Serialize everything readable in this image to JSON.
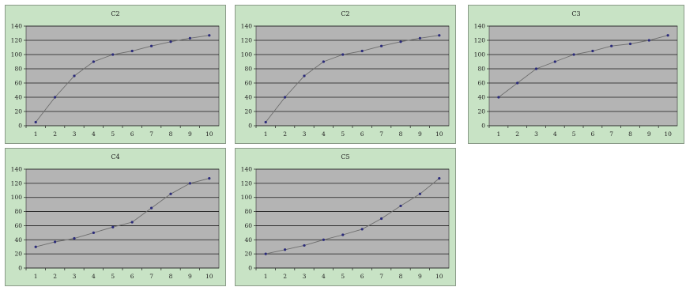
{
  "chart_data": [
    {
      "type": "line",
      "title": "C2",
      "categories": [
        "1",
        "2",
        "3",
        "4",
        "5",
        "6",
        "7",
        "8",
        "9",
        "10"
      ],
      "series": [
        {
          "values": [
            5,
            40,
            70,
            90,
            100,
            105,
            112,
            118,
            123,
            127
          ]
        }
      ],
      "y_ticks": [
        "0",
        "20",
        "40",
        "60",
        "80",
        "100",
        "120",
        "140"
      ],
      "ylim": [
        0,
        140
      ],
      "grid": true,
      "colors": {
        "panel": "#c8e3c5",
        "plot": "#b4b4b4",
        "line": "#6e6e6e",
        "marker": "#2b2b7a",
        "grid": "#1a1a1a"
      }
    },
    {
      "type": "line",
      "title": "C2",
      "categories": [
        "1",
        "2",
        "3",
        "4",
        "5",
        "6",
        "7",
        "8",
        "9",
        "10"
      ],
      "series": [
        {
          "values": [
            5,
            40,
            70,
            90,
            100,
            105,
            112,
            118,
            123,
            127
          ]
        }
      ],
      "y_ticks": [
        "0",
        "20",
        "40",
        "60",
        "80",
        "100",
        "120",
        "140"
      ],
      "ylim": [
        0,
        140
      ],
      "grid": true,
      "colors": {
        "panel": "#c8e3c5",
        "plot": "#b4b4b4",
        "line": "#6e6e6e",
        "marker": "#2b2b7a",
        "grid": "#1a1a1a"
      }
    },
    {
      "type": "line",
      "title": "C3",
      "categories": [
        "1",
        "2",
        "3",
        "4",
        "5",
        "6",
        "7",
        "8",
        "9",
        "10"
      ],
      "series": [
        {
          "values": [
            40,
            60,
            80,
            90,
            100,
            105,
            112,
            115,
            120,
            127
          ]
        }
      ],
      "y_ticks": [
        "0",
        "20",
        "40",
        "60",
        "80",
        "100",
        "120",
        "140"
      ],
      "ylim": [
        0,
        140
      ],
      "grid": true,
      "colors": {
        "panel": "#c8e3c5",
        "plot": "#b4b4b4",
        "line": "#6e6e6e",
        "marker": "#2b2b7a",
        "grid": "#1a1a1a"
      }
    },
    {
      "type": "line",
      "title": "C4",
      "categories": [
        "1",
        "2",
        "3",
        "4",
        "5",
        "6",
        "7",
        "8",
        "9",
        "10"
      ],
      "series": [
        {
          "values": [
            30,
            37,
            42,
            50,
            58,
            65,
            85,
            105,
            120,
            127
          ]
        }
      ],
      "y_ticks": [
        "0",
        "20",
        "40",
        "60",
        "80",
        "100",
        "120",
        "140"
      ],
      "ylim": [
        0,
        140
      ],
      "grid": true,
      "colors": {
        "panel": "#c8e3c5",
        "plot": "#b4b4b4",
        "line": "#6e6e6e",
        "marker": "#2b2b7a",
        "grid": "#1a1a1a"
      }
    },
    {
      "type": "line",
      "title": "C5",
      "categories": [
        "1",
        "2",
        "3",
        "4",
        "5",
        "6",
        "7",
        "8",
        "9",
        "10"
      ],
      "series": [
        {
          "values": [
            20,
            26,
            32,
            40,
            47,
            55,
            70,
            88,
            105,
            127
          ]
        }
      ],
      "y_ticks": [
        "0",
        "20",
        "40",
        "60",
        "80",
        "100",
        "120",
        "140"
      ],
      "ylim": [
        0,
        140
      ],
      "grid": true,
      "colors": {
        "panel": "#c8e3c5",
        "plot": "#b4b4b4",
        "line": "#6e6e6e",
        "marker": "#2b2b7a",
        "grid": "#1a1a1a"
      }
    }
  ]
}
